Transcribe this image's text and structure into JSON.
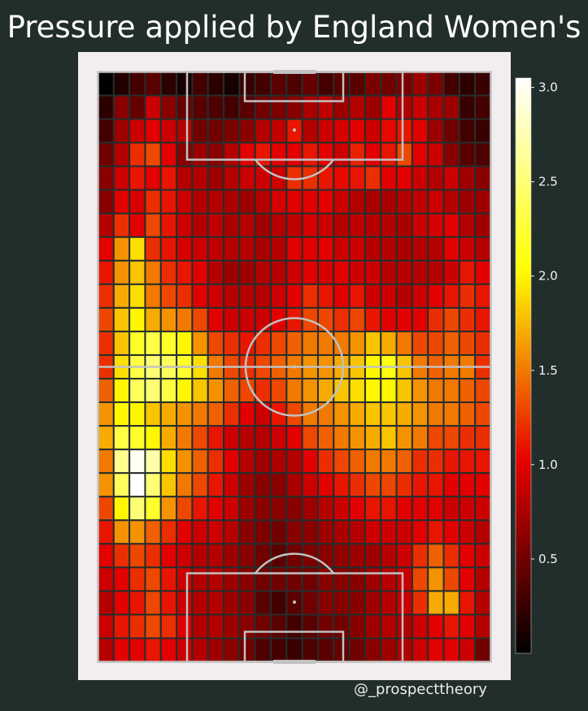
{
  "title": "Pressure applied by England Women's",
  "credit": "@_prospecttheory",
  "colors": {
    "background": "#222e2c",
    "panel": "#f2eeef",
    "grid_line": "#262e2c",
    "pitch_line": "#c2c2c2",
    "colormap": [
      "#000000",
      "#e60000",
      "#ffff00",
      "#ffffff"
    ]
  },
  "chart_data": {
    "type": "heatmap",
    "colormap": "hot",
    "colorbar": {
      "range": [
        0.0,
        3.05
      ],
      "ticks": [
        0.5,
        1.0,
        1.5,
        2.0,
        2.5,
        3.0
      ],
      "tick_labels": [
        "0.5",
        "1.0",
        "1.5",
        "2.0",
        "2.5",
        "3.0"
      ]
    },
    "grid_rows": 25,
    "grid_cols": 25,
    "row_order": "top (attacking end) to bottom (own goal)",
    "values": [
      [
        0.0,
        0.15,
        0.3,
        0.4,
        0.2,
        0.1,
        0.3,
        0.2,
        0.1,
        0.25,
        0.3,
        0.4,
        0.35,
        0.45,
        0.3,
        0.4,
        0.4,
        0.55,
        0.5,
        0.55,
        0.7,
        0.55,
        0.3,
        0.2,
        0.25
      ],
      [
        0.2,
        0.6,
        0.45,
        0.9,
        0.6,
        0.45,
        0.4,
        0.35,
        0.3,
        0.4,
        0.5,
        0.55,
        0.6,
        0.75,
        0.85,
        0.7,
        0.8,
        0.7,
        1.0,
        0.8,
        0.9,
        0.75,
        0.7,
        0.25,
        0.3
      ],
      [
        0.3,
        0.7,
        0.9,
        1.0,
        0.9,
        0.8,
        0.5,
        0.5,
        0.55,
        0.6,
        0.8,
        0.85,
        1.1,
        0.8,
        0.9,
        0.95,
        1.0,
        0.9,
        1.05,
        1.1,
        1.0,
        0.7,
        0.5,
        0.3,
        0.25
      ],
      [
        0.5,
        0.8,
        1.2,
        1.3,
        1.0,
        0.6,
        0.7,
        0.6,
        0.8,
        1.0,
        1.1,
        1.0,
        1.0,
        1.1,
        1.0,
        0.9,
        1.15,
        1.0,
        1.1,
        1.3,
        1.0,
        0.9,
        0.6,
        0.4,
        0.35
      ],
      [
        0.6,
        0.9,
        1.1,
        1.0,
        1.1,
        0.8,
        0.8,
        0.7,
        0.8,
        0.9,
        0.9,
        0.9,
        1.2,
        1.2,
        1.1,
        1.05,
        1.1,
        1.2,
        1.0,
        1.0,
        0.9,
        0.8,
        0.9,
        0.7,
        0.6
      ],
      [
        0.6,
        1.0,
        0.95,
        1.2,
        1.1,
        0.9,
        0.8,
        0.8,
        0.75,
        0.7,
        0.8,
        0.95,
        1.0,
        1.0,
        1.0,
        0.9,
        0.8,
        0.75,
        0.75,
        0.8,
        0.85,
        0.9,
        0.8,
        0.7,
        0.7
      ],
      [
        0.8,
        1.2,
        1.0,
        1.3,
        1.1,
        0.9,
        0.8,
        0.85,
        0.75,
        0.8,
        0.7,
        0.8,
        0.85,
        0.95,
        0.9,
        0.8,
        0.85,
        0.8,
        0.8,
        0.75,
        0.9,
        0.95,
        1.0,
        0.8,
        0.7
      ],
      [
        1.0,
        1.6,
        1.9,
        1.2,
        1.1,
        0.95,
        0.9,
        0.85,
        0.8,
        0.8,
        0.75,
        0.8,
        1.0,
        1.0,
        1.0,
        0.9,
        0.9,
        0.8,
        0.8,
        0.75,
        0.8,
        0.8,
        1.0,
        0.9,
        0.8
      ],
      [
        1.1,
        1.6,
        1.8,
        1.5,
        1.2,
        1.1,
        1.0,
        0.8,
        0.7,
        0.7,
        0.8,
        0.8,
        0.9,
        1.0,
        0.95,
        1.0,
        0.9,
        0.9,
        0.8,
        0.8,
        0.8,
        0.8,
        0.9,
        1.1,
        1.0
      ],
      [
        1.2,
        1.7,
        1.9,
        1.5,
        1.3,
        1.2,
        1.0,
        0.9,
        0.8,
        0.8,
        0.8,
        0.9,
        1.0,
        1.2,
        1.1,
        1.0,
        1.1,
        0.9,
        0.9,
        0.8,
        0.9,
        1.0,
        1.1,
        1.2,
        1.1
      ],
      [
        1.3,
        1.8,
        2.0,
        1.7,
        1.6,
        1.5,
        1.3,
        1.0,
        0.9,
        0.9,
        0.9,
        1.0,
        1.1,
        1.3,
        1.3,
        1.2,
        1.3,
        1.1,
        1.0,
        1.0,
        1.0,
        1.2,
        1.3,
        1.2,
        1.1
      ],
      [
        1.2,
        1.8,
        2.2,
        2.3,
        2.2,
        2.0,
        1.6,
        1.3,
        1.2,
        1.1,
        1.2,
        1.3,
        1.4,
        1.5,
        1.5,
        1.5,
        1.6,
        1.8,
        1.7,
        1.5,
        1.3,
        1.3,
        1.4,
        1.3,
        1.2
      ],
      [
        1.2,
        1.9,
        2.3,
        2.5,
        2.4,
        2.2,
        1.9,
        1.5,
        1.3,
        1.2,
        1.3,
        1.4,
        1.5,
        1.6,
        1.6,
        1.7,
        1.8,
        2.0,
        2.1,
        1.8,
        1.5,
        1.4,
        1.5,
        1.5,
        1.2
      ],
      [
        1.4,
        2.0,
        2.4,
        2.5,
        2.3,
        2.0,
        1.8,
        1.6,
        1.4,
        1.3,
        1.2,
        1.3,
        1.5,
        1.6,
        1.7,
        1.8,
        1.9,
        2.0,
        2.0,
        1.8,
        1.6,
        1.5,
        1.5,
        1.4,
        1.3
      ],
      [
        1.6,
        2.0,
        2.0,
        1.8,
        1.7,
        1.6,
        1.5,
        1.4,
        1.2,
        1.0,
        0.9,
        1.1,
        1.3,
        1.5,
        1.5,
        1.6,
        1.7,
        1.8,
        1.8,
        1.7,
        1.6,
        1.5,
        1.5,
        1.4,
        1.3
      ],
      [
        1.7,
        2.3,
        2.2,
        2.0,
        1.7,
        1.5,
        1.3,
        1.1,
        0.9,
        0.8,
        0.8,
        0.9,
        1.0,
        1.3,
        1.4,
        1.5,
        1.6,
        1.7,
        1.8,
        1.6,
        1.5,
        1.3,
        1.3,
        1.2,
        1.2
      ],
      [
        1.5,
        2.6,
        3.0,
        2.7,
        1.9,
        1.6,
        1.4,
        1.2,
        1.0,
        0.8,
        0.7,
        0.75,
        0.8,
        1.0,
        1.2,
        1.3,
        1.4,
        1.5,
        1.5,
        1.4,
        1.2,
        1.2,
        1.1,
        1.1,
        1.1
      ],
      [
        1.6,
        2.4,
        3.05,
        2.5,
        1.8,
        1.5,
        1.3,
        1.1,
        0.9,
        0.7,
        0.6,
        0.6,
        0.75,
        0.9,
        1.0,
        1.1,
        1.2,
        1.3,
        1.3,
        1.2,
        1.1,
        1.1,
        1.0,
        1.0,
        1.0
      ],
      [
        1.3,
        2.0,
        2.5,
        2.2,
        1.6,
        1.3,
        1.1,
        1.0,
        0.9,
        0.7,
        0.6,
        0.6,
        0.6,
        0.7,
        0.8,
        0.9,
        1.0,
        1.1,
        1.1,
        1.0,
        1.0,
        1.0,
        0.9,
        0.9,
        0.9
      ],
      [
        1.1,
        1.6,
        1.6,
        1.4,
        1.2,
        1.0,
        0.9,
        0.9,
        0.8,
        0.6,
        0.55,
        0.5,
        0.6,
        0.6,
        0.7,
        0.75,
        0.8,
        0.9,
        0.9,
        0.9,
        1.0,
        1.1,
        1.0,
        0.9,
        0.8
      ],
      [
        1.0,
        1.2,
        1.3,
        1.2,
        1.0,
        0.9,
        0.8,
        0.8,
        0.7,
        0.6,
        0.5,
        0.4,
        0.5,
        0.55,
        0.6,
        0.65,
        0.7,
        0.7,
        0.8,
        0.9,
        1.2,
        1.4,
        1.2,
        1.0,
        0.9
      ],
      [
        0.9,
        1.0,
        1.2,
        1.3,
        1.1,
        0.9,
        0.8,
        0.8,
        0.7,
        0.6,
        0.5,
        0.5,
        0.5,
        0.5,
        0.6,
        0.6,
        0.6,
        0.7,
        0.8,
        0.9,
        1.3,
        1.6,
        1.3,
        1.0,
        0.8
      ],
      [
        0.8,
        1.0,
        1.1,
        1.3,
        1.1,
        0.9,
        0.8,
        0.8,
        0.7,
        0.6,
        0.4,
        0.3,
        0.4,
        0.5,
        0.6,
        0.6,
        0.6,
        0.7,
        0.8,
        0.9,
        1.2,
        1.7,
        1.7,
        1.1,
        0.8
      ],
      [
        0.9,
        1.1,
        1.2,
        1.3,
        1.2,
        1.0,
        0.8,
        0.8,
        0.7,
        0.6,
        0.5,
        0.4,
        0.3,
        0.4,
        0.5,
        0.5,
        0.6,
        0.7,
        0.8,
        0.8,
        0.9,
        1.0,
        1.1,
        1.0,
        0.8
      ],
      [
        0.8,
        1.0,
        1.0,
        1.1,
        1.0,
        0.9,
        0.8,
        0.7,
        0.6,
        0.5,
        0.35,
        0.3,
        0.25,
        0.35,
        0.4,
        0.45,
        0.5,
        0.6,
        0.7,
        0.8,
        0.9,
        1.0,
        1.0,
        0.9,
        0.5
      ]
    ]
  }
}
